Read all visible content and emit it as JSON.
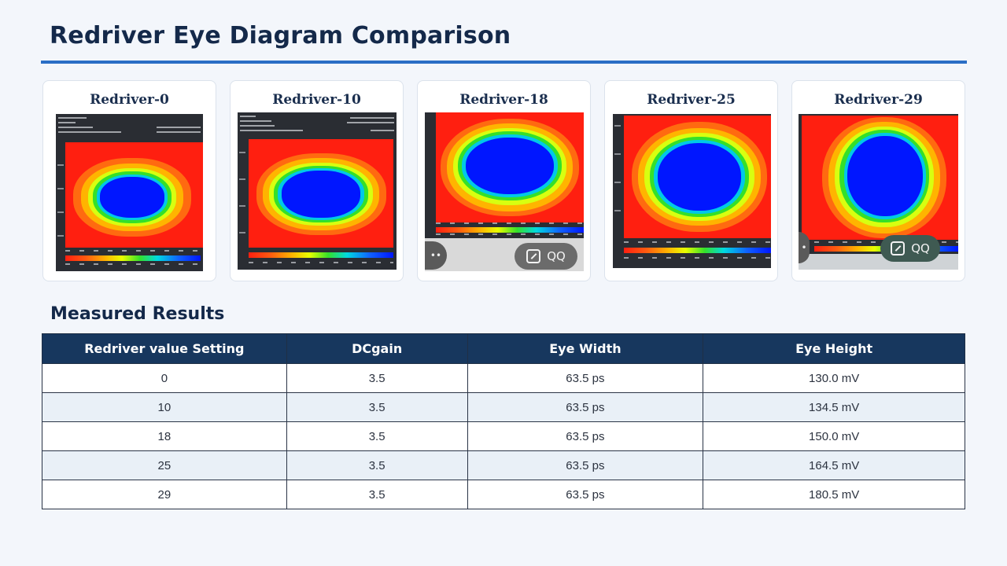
{
  "title": "Redriver Eye Diagram Comparison",
  "cards": [
    {
      "label": "Redriver-0"
    },
    {
      "label": "Redriver-10"
    },
    {
      "label": "Redriver-18",
      "share_text": "QQ"
    },
    {
      "label": "Redriver-25"
    },
    {
      "label": "Redriver-29",
      "share_text": "QQ"
    }
  ],
  "section_title": "Measured Results",
  "table": {
    "headers": [
      "Redriver value Setting",
      "DCgain",
      "Eye Width",
      "Eye Height"
    ],
    "rows": [
      [
        "0",
        "3.5",
        "63.5 ps",
        "130.0 mV"
      ],
      [
        "10",
        "3.5",
        "63.5 ps",
        "134.5 mV"
      ],
      [
        "18",
        "3.5",
        "63.5 ps",
        "150.0 mV"
      ],
      [
        "25",
        "3.5",
        "63.5 ps",
        "164.5 mV"
      ],
      [
        "29",
        "3.5",
        "63.5 ps",
        "180.5 mV"
      ]
    ]
  },
  "colors": {
    "accent": "#2a6ec5",
    "header_bg": "#17375e",
    "eye_outer": "#ff1f10",
    "eye_inner": "#0016ff"
  }
}
